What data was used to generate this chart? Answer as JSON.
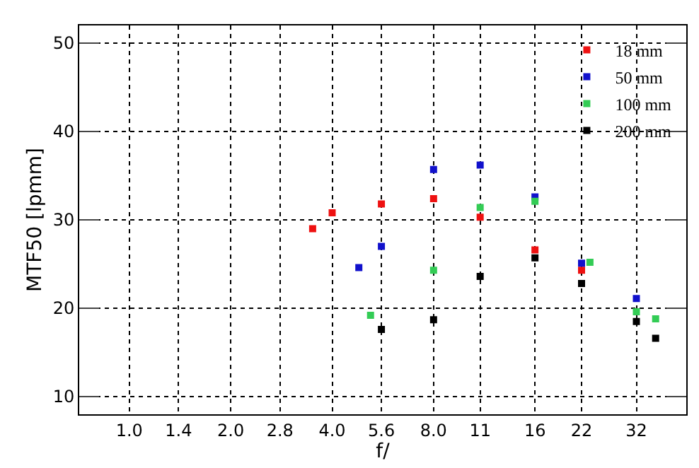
{
  "chart_data": {
    "type": "scatter",
    "xlabel": "f/",
    "ylabel": "MTF50 [lpmm]",
    "log": "x",
    "xlim": [
      0.71,
      45
    ],
    "ylim": [
      8,
      52
    ],
    "xticks": [
      {
        "value": 1,
        "label": "1.0"
      },
      1.4,
      {
        "value": 2,
        "label": "2.0"
      },
      2.8,
      {
        "value": 4,
        "label": "4.0"
      },
      5.6,
      {
        "value": 8,
        "label": "8.0"
      },
      11,
      16,
      22,
      32
    ],
    "yticks": [
      10,
      20,
      30,
      40,
      50
    ],
    "grid": true,
    "legend": "top right",
    "marker": "square",
    "series": [
      {
        "name": "18 mm",
        "color": "#ee1111",
        "x": [
          3.5,
          4.0,
          5.6,
          8.0,
          11,
          16,
          22
        ],
        "values": [
          29.0,
          30.8,
          31.8,
          32.4,
          30.3,
          26.6,
          24.3
        ]
      },
      {
        "name": "50 mm",
        "color": "#1111cc",
        "x": [
          4.8,
          5.6,
          8.0,
          11,
          16,
          22,
          32
        ],
        "values": [
          24.6,
          27.0,
          35.7,
          36.2,
          32.6,
          25.1,
          21.1
        ]
      },
      {
        "name": "100 mm",
        "color": "#33cc55",
        "x": [
          5.2,
          8.0,
          11,
          16,
          23.3,
          32,
          36.5
        ],
        "values": [
          19.2,
          24.3,
          31.4,
          32.1,
          25.2,
          19.6,
          18.8
        ]
      },
      {
        "name": "200 mm",
        "color": "#000000",
        "x": [
          5.6,
          8.0,
          11,
          16,
          22,
          32,
          36.5
        ],
        "values": [
          17.6,
          18.7,
          23.6,
          25.7,
          22.8,
          18.5,
          16.6
        ]
      }
    ]
  }
}
